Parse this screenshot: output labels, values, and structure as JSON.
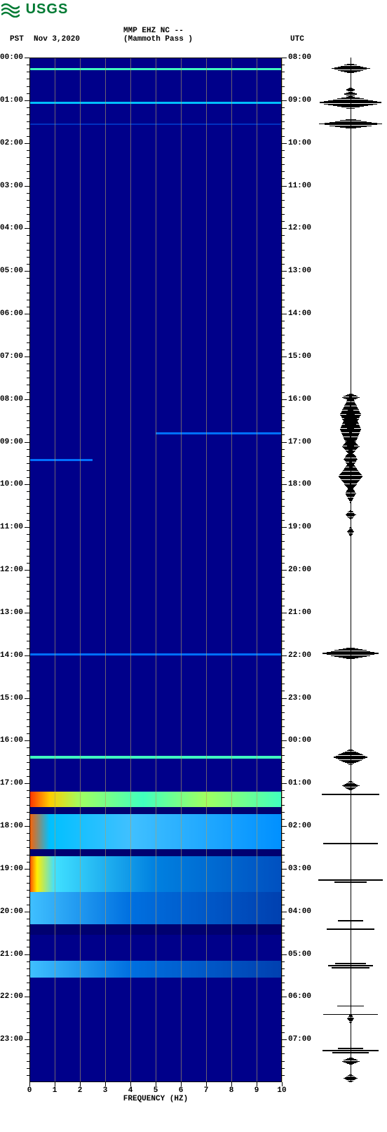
{
  "logo": {
    "brand": "USGS",
    "color": "#007a33"
  },
  "header": {
    "timezone_left": "PST",
    "date": "Nov 3,2020",
    "station_line1": "MMP EHZ NC --",
    "station_line2": "(Mammoth Pass )",
    "timezone_right": "UTC"
  },
  "spectrogram": {
    "type": "spectrogram",
    "background_color": "#00008a",
    "deep_color": "#000070",
    "grid_line_color": "#b0a060",
    "x_axis": {
      "title": "FREQUENCY (HZ)",
      "min": 0,
      "max": 10,
      "ticks": [
        0,
        1,
        2,
        3,
        4,
        5,
        6,
        7,
        8,
        9,
        10
      ]
    },
    "y_axis_left": {
      "label": "PST",
      "ticks": [
        "00:00",
        "01:00",
        "02:00",
        "03:00",
        "04:00",
        "05:00",
        "06:00",
        "07:00",
        "08:00",
        "09:00",
        "10:00",
        "11:00",
        "12:00",
        "13:00",
        "14:00",
        "15:00",
        "16:00",
        "17:00",
        "18:00",
        "19:00",
        "20:00",
        "21:00",
        "22:00",
        "23:00"
      ]
    },
    "y_axis_right": {
      "label": "UTC",
      "ticks": [
        "08:00",
        "09:00",
        "10:00",
        "11:00",
        "12:00",
        "13:00",
        "14:00",
        "15:00",
        "16:00",
        "17:00",
        "18:00",
        "19:00",
        "20:00",
        "21:00",
        "22:00",
        "23:00",
        "00:00",
        "01:00",
        "02:00",
        "03:00",
        "04:00",
        "05:00",
        "06:00",
        "07:00"
      ]
    },
    "hours_total": 24,
    "colormap": [
      "#000070",
      "#00008a",
      "#0030c0",
      "#0070ff",
      "#00c0ff",
      "#40ffbf",
      "#a0ff60",
      "#ffff00",
      "#ff8000",
      "#ff0000"
    ],
    "events": [
      {
        "start_hour": 0.25,
        "end_hour": 0.3,
        "intensity": 0.55,
        "type": "line"
      },
      {
        "start_hour": 1.03,
        "end_hour": 1.08,
        "intensity": 0.45,
        "type": "line"
      },
      {
        "start_hour": 1.55,
        "end_hour": 1.58,
        "intensity": 0.25,
        "type": "line"
      },
      {
        "start_hour": 8.78,
        "end_hour": 8.82,
        "intensity": 0.3,
        "type": "line_partial",
        "f0": 5,
        "f1": 10
      },
      {
        "start_hour": 9.4,
        "end_hour": 9.45,
        "intensity": 0.3,
        "type": "line_partial",
        "f0": 0,
        "f1": 2.5
      },
      {
        "start_hour": 13.95,
        "end_hour": 14.0,
        "intensity": 0.3,
        "type": "line"
      },
      {
        "start_hour": 16.35,
        "end_hour": 16.42,
        "intensity": 0.55,
        "type": "line"
      },
      {
        "start_hour": 17.2,
        "end_hour": 17.55,
        "intensity": 0.95,
        "type": "band_hot"
      },
      {
        "start_hour": 17.55,
        "end_hour": 17.72,
        "intensity": 0.2,
        "type": "dark"
      },
      {
        "start_hour": 17.72,
        "end_hour": 18.05,
        "intensity": 0.7,
        "type": "band_med"
      },
      {
        "start_hour": 18.05,
        "end_hour": 18.55,
        "intensity": 0.6,
        "type": "band_med"
      },
      {
        "start_hour": 18.55,
        "end_hour": 18.7,
        "intensity": 0.15,
        "type": "dark"
      },
      {
        "start_hour": 18.7,
        "end_hour": 19.1,
        "intensity": 0.7,
        "type": "band_med_left"
      },
      {
        "start_hour": 19.1,
        "end_hour": 19.55,
        "intensity": 0.55,
        "type": "band_med_left"
      },
      {
        "start_hour": 19.55,
        "end_hour": 20.3,
        "intensity": 0.4,
        "type": "band_low"
      },
      {
        "start_hour": 20.3,
        "end_hour": 20.55,
        "intensity": 0.1,
        "type": "dark"
      },
      {
        "start_hour": 21.15,
        "end_hour": 21.55,
        "intensity": 0.45,
        "type": "band_low"
      }
    ]
  },
  "seismogram": {
    "type": "waveform",
    "axis_color": "#000000",
    "events": [
      {
        "hour": 0.25,
        "amp": 0.55,
        "dur": 0.05
      },
      {
        "hour": 0.75,
        "amp": 0.15,
        "dur": 0.03
      },
      {
        "hour": 0.85,
        "amp": 0.2,
        "dur": 0.03
      },
      {
        "hour": 1.05,
        "amp": 0.95,
        "dur": 0.06
      },
      {
        "hour": 1.55,
        "amp": 0.9,
        "dur": 0.05
      },
      {
        "hour": 7.95,
        "amp": 0.25,
        "dur": 0.04
      },
      {
        "hour": 8.35,
        "amp": 0.3,
        "dur": 0.2
      },
      {
        "hour": 8.7,
        "amp": 0.3,
        "dur": 0.25
      },
      {
        "hour": 9.1,
        "amp": 0.25,
        "dur": 0.1
      },
      {
        "hour": 9.4,
        "amp": 0.2,
        "dur": 0.1
      },
      {
        "hour": 9.8,
        "amp": 0.35,
        "dur": 0.15
      },
      {
        "hour": 10.2,
        "amp": 0.15,
        "dur": 0.1
      },
      {
        "hour": 10.7,
        "amp": 0.15,
        "dur": 0.05
      },
      {
        "hour": 11.1,
        "amp": 0.1,
        "dur": 0.05
      },
      {
        "hour": 13.95,
        "amp": 0.85,
        "dur": 0.06
      },
      {
        "hour": 16.38,
        "amp": 0.5,
        "dur": 0.08
      },
      {
        "hour": 17.05,
        "amp": 0.25,
        "dur": 0.05
      },
      {
        "hour": 17.25,
        "amp": 0.98,
        "dur": 0.9,
        "solid": true
      },
      {
        "hour": 18.4,
        "amp": 0.9,
        "dur": 0.7,
        "solid": true
      },
      {
        "hour": 19.3,
        "amp": 0.6,
        "dur": 0.7,
        "solid": true
      },
      {
        "hour": 20.2,
        "amp": 0.45,
        "dur": 0.6,
        "solid": true
      },
      {
        "hour": 21.2,
        "amp": 0.5,
        "dur": 0.5,
        "solid": true
      },
      {
        "hour": 22.5,
        "amp": 0.1,
        "dur": 0.05
      },
      {
        "hour": 23.5,
        "amp": 0.25,
        "dur": 0.04
      },
      {
        "hour": 23.9,
        "amp": 0.2,
        "dur": 0.04
      }
    ]
  }
}
